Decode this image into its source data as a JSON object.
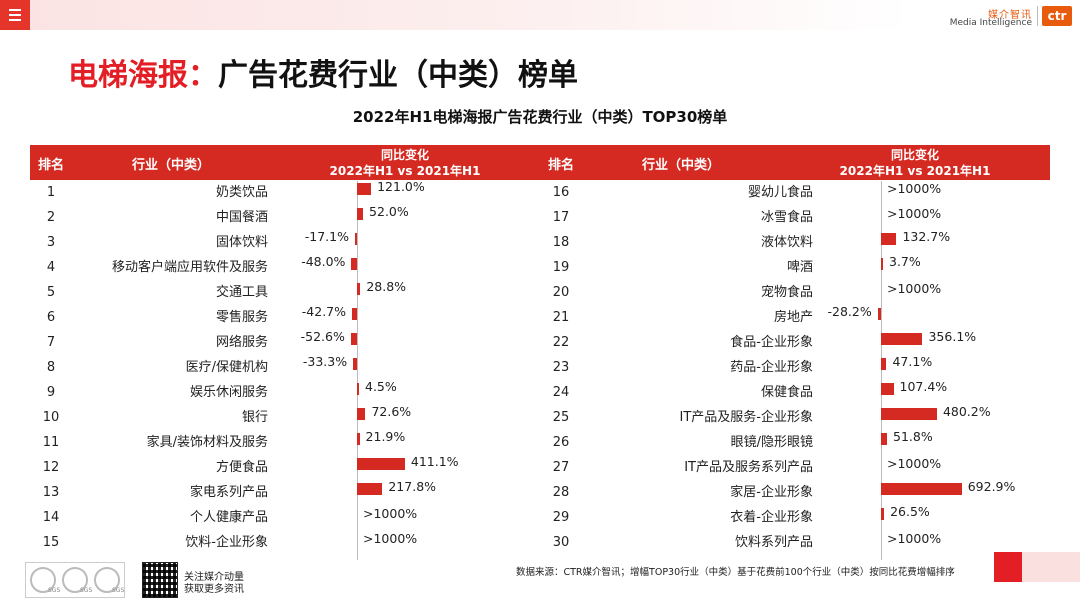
{
  "header": {
    "logo_cn": "媒介智讯",
    "logo_en": "Media Intelligence",
    "logo_mark": "ctr",
    "accent_color": "#e31e24"
  },
  "page_title": {
    "highlight": "电梯海报：",
    "rest": "广告花费行业（中类）榜单"
  },
  "chart_data": {
    "type": "bar",
    "title": "2022年H1电梯海报广告花费行业（中类）TOP30榜单",
    "columns": {
      "rank": "排名",
      "industry": "行业（中类）",
      "change_line1": "同比变化",
      "change_line2": "2022年H1 vs 2021年H1"
    },
    "rows": [
      {
        "rank": "1",
        "industry": "奶类饮品",
        "value": 121.0,
        "label": "121.0%"
      },
      {
        "rank": "2",
        "industry": "中国餐酒",
        "value": 52.0,
        "label": "52.0%"
      },
      {
        "rank": "3",
        "industry": "固体饮料",
        "value": -17.1,
        "label": "-17.1%"
      },
      {
        "rank": "4",
        "industry": "移动客户端应用软件及服务",
        "value": -48.0,
        "label": "-48.0%"
      },
      {
        "rank": "5",
        "industry": "交通工具",
        "value": 28.8,
        "label": "28.8%"
      },
      {
        "rank": "6",
        "industry": "零售服务",
        "value": -42.7,
        "label": "-42.7%"
      },
      {
        "rank": "7",
        "industry": "网络服务",
        "value": -52.6,
        "label": "-52.6%"
      },
      {
        "rank": "8",
        "industry": "医疗/保健机构",
        "value": -33.3,
        "label": "-33.3%"
      },
      {
        "rank": "9",
        "industry": "娱乐休闲服务",
        "value": 4.5,
        "label": "4.5%"
      },
      {
        "rank": "10",
        "industry": "银行",
        "value": 72.6,
        "label": "72.6%"
      },
      {
        "rank": "11",
        "industry": "家具/装饰材料及服务",
        "value": 21.9,
        "label": "21.9%"
      },
      {
        "rank": "12",
        "industry": "方便食品",
        "value": 411.1,
        "label": "411.1%"
      },
      {
        "rank": "13",
        "industry": "家电系列产品",
        "value": 217.8,
        "label": "217.8%"
      },
      {
        "rank": "14",
        "industry": "个人健康产品",
        "value": null,
        "label": ">1000%"
      },
      {
        "rank": "15",
        "industry": "饮料-企业形象",
        "value": null,
        "label": ">1000%"
      },
      {
        "rank": "16",
        "industry": "婴幼儿食品",
        "value": null,
        "label": ">1000%"
      },
      {
        "rank": "17",
        "industry": "冰雪食品",
        "value": null,
        "label": ">1000%"
      },
      {
        "rank": "18",
        "industry": "液体饮料",
        "value": 132.7,
        "label": "132.7%"
      },
      {
        "rank": "19",
        "industry": "啤酒",
        "value": 3.7,
        "label": "3.7%"
      },
      {
        "rank": "20",
        "industry": "宠物食品",
        "value": null,
        "label": ">1000%"
      },
      {
        "rank": "21",
        "industry": "房地产",
        "value": -28.2,
        "label": "-28.2%"
      },
      {
        "rank": "22",
        "industry": "食品-企业形象",
        "value": 356.1,
        "label": "356.1%"
      },
      {
        "rank": "23",
        "industry": "药品-企业形象",
        "value": 47.1,
        "label": "47.1%"
      },
      {
        "rank": "24",
        "industry": "保健食品",
        "value": 107.4,
        "label": "107.4%"
      },
      {
        "rank": "25",
        "industry": "IT产品及服务-企业形象",
        "value": 480.2,
        "label": "480.2%"
      },
      {
        "rank": "26",
        "industry": "眼镜/隐形眼镜",
        "value": 51.8,
        "label": "51.8%"
      },
      {
        "rank": "27",
        "industry": "IT产品及服务系列产品",
        "value": null,
        "label": ">1000%"
      },
      {
        "rank": "28",
        "industry": "家居-企业形象",
        "value": 692.9,
        "label": "692.9%"
      },
      {
        "rank": "29",
        "industry": "衣着-企业形象",
        "value": 26.5,
        "label": "26.5%"
      },
      {
        "rank": "30",
        "industry": "饮料系列产品",
        "value": null,
        "label": ">1000%"
      }
    ]
  },
  "footer": {
    "badge_label": "SGS",
    "qr_line1": "关注媒介动量",
    "qr_line2": "获取更多资讯",
    "source": "数据来源：CTR媒介智讯；增幅TOP30行业（中类）基于花费前100个行业（中类）按同比花费增幅排序"
  }
}
